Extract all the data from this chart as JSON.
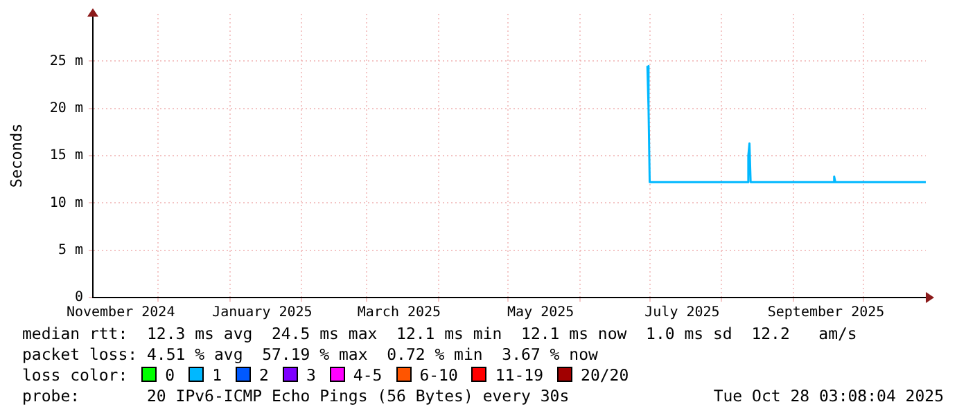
{
  "chart_data": {
    "type": "line",
    "ylabel": "Seconds",
    "x": [
      "2025-06-30",
      "2025-06-30T12:00",
      "2025-07-01",
      "2025-08-12",
      "2025-08-12T12:00",
      "2025-08-13",
      "2025-08-13T12:00",
      "2025-09-18",
      "2025-09-18T12:00",
      "2025-09-19",
      "2025-10-28"
    ],
    "series": [
      {
        "color": "#00b8ff",
        "values": [
          24.5,
          20,
          12.2,
          12.2,
          15,
          16.3,
          12.2,
          12.2,
          12.8,
          12.2,
          12.2
        ]
      }
    ],
    "xlim": [
      "2024-11-03",
      "2025-10-28"
    ],
    "xticks": [
      {
        "value": "2024-11-15",
        "label": "November 2024"
      },
      {
        "value": "2024-12-01",
        "label": null
      },
      {
        "value": "2025-01-01",
        "label": null
      },
      {
        "value": "2025-01-15",
        "label": "January 2025"
      },
      {
        "value": "2025-02-01",
        "label": null
      },
      {
        "value": "2025-03-01",
        "label": null
      },
      {
        "value": "2025-03-15",
        "label": "March 2025"
      },
      {
        "value": "2025-04-01",
        "label": null
      },
      {
        "value": "2025-05-01",
        "label": null
      },
      {
        "value": "2025-05-15",
        "label": "May 2025"
      },
      {
        "value": "2025-06-01",
        "label": null
      },
      {
        "value": "2025-07-01",
        "label": null
      },
      {
        "value": "2025-07-15",
        "label": "July 2025"
      },
      {
        "value": "2025-08-01",
        "label": null
      },
      {
        "value": "2025-09-01",
        "label": null
      },
      {
        "value": "2025-09-15",
        "label": "September 2025"
      },
      {
        "value": "2025-10-01",
        "label": null
      }
    ],
    "ylim": [
      0,
      30
    ],
    "yticks": [
      0,
      {
        "value": 5,
        "label": "5 m"
      },
      {
        "value": 10,
        "label": "10 m"
      },
      {
        "value": 15,
        "label": "15 m"
      },
      {
        "value": 20,
        "label": "20 m"
      },
      {
        "value": 25,
        "label": "25 m"
      }
    ],
    "grid": true,
    "legend": false,
    "marker": "none",
    "line_style": "solid",
    "annotations": [
      "median rtt:  12.3 ms avg  24.5 ms max  12.1 ms min  12.1 ms now  1.0 ms sd  12.2   am/s",
      "packet loss: 4.51 % avg  57.19 % max  0.72 % min  3.67 % now",
      "loss color:",
      "0",
      "1",
      "2",
      "3",
      "4-5",
      "6-10",
      "11-19",
      "20/20",
      "probe:       20 IPv6-ICMP Echo Pings (56 Bytes) every 30s",
      "Tue Oct 28 03:08:04 2025"
    ]
  }
}
